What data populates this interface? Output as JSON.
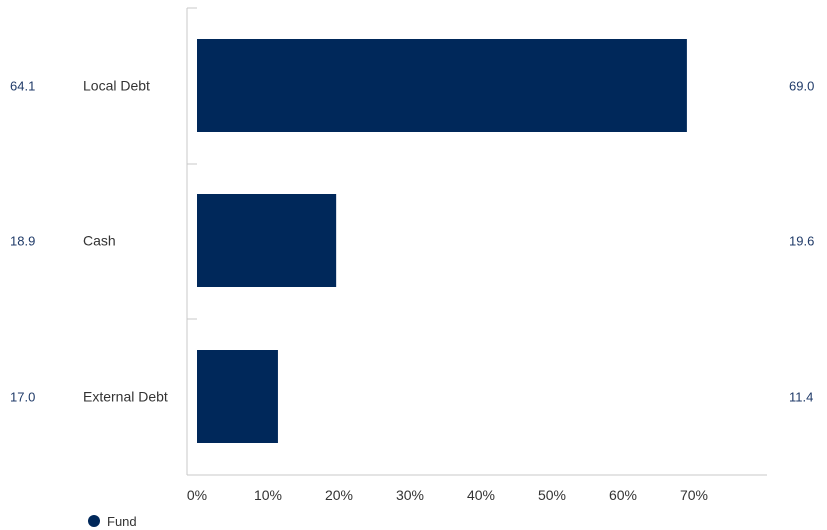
{
  "colors": {
    "bar": "#00285a",
    "axis": "#c8c8c8",
    "side_values": "#1f3a68"
  },
  "chart_data": {
    "type": "bar",
    "orientation": "horizontal",
    "categories": [
      "Local Debt",
      "Cash",
      "External Debt"
    ],
    "series": [
      {
        "name": "Fund",
        "values": [
          69.0,
          19.6,
          11.4
        ]
      }
    ],
    "left_values": [
      "64.1",
      "18.9",
      "17.0"
    ],
    "right_values": [
      "69.0",
      "19.6",
      "11.4"
    ],
    "x_ticks": [
      "0%",
      "10%",
      "20%",
      "30%",
      "40%",
      "50%",
      "60%",
      "70%"
    ],
    "xlim": [
      0,
      80
    ],
    "grid": false,
    "legend": {
      "position": "bottom-left",
      "entries": [
        "Fund"
      ]
    }
  }
}
